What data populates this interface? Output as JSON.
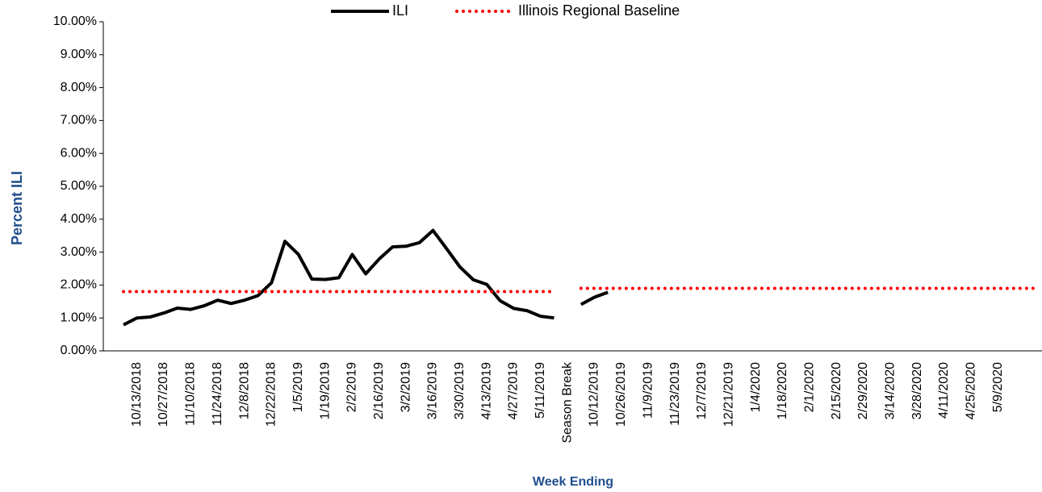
{
  "chart_data": {
    "type": "line",
    "x_label": "Week Ending",
    "y_label": "Percent ILI",
    "categories": [
      null,
      null,
      "10/13/2018",
      null,
      "10/27/2018",
      null,
      "11/10/2018",
      null,
      "11/24/2018",
      null,
      "12/8/2018",
      null,
      "12/22/2018",
      null,
      "1/5/2019",
      null,
      "1/19/2019",
      null,
      "2/2/2019",
      null,
      "2/16/2019",
      null,
      "3/2/2019",
      null,
      "3/16/2019",
      null,
      "3/30/2019",
      null,
      "4/13/2019",
      null,
      "4/27/2019",
      null,
      "5/11/2019",
      null,
      "Season Break",
      null,
      "10/12/2019",
      null,
      "10/26/2019",
      null,
      "11/9/2019",
      null,
      "11/23/2019",
      null,
      "12/7/2019",
      null,
      "12/21/2019",
      null,
      "1/4/2020",
      null,
      "1/18/2020",
      null,
      "2/1/2020",
      null,
      "2/15/2020",
      null,
      "2/29/2020",
      null,
      "3/14/2020",
      null,
      "3/28/2020",
      null,
      "4/11/2020",
      null,
      "4/25/2020",
      null,
      "5/9/2020",
      null,
      null,
      null
    ],
    "series": [
      {
        "name": "ILI",
        "color": "#000000",
        "line_style": "solid",
        "values": [
          null,
          0.79,
          1.0,
          1.03,
          1.15,
          1.3,
          1.26,
          1.37,
          1.54,
          1.44,
          1.54,
          1.68,
          2.07,
          3.33,
          2.93,
          2.18,
          2.17,
          2.22,
          2.93,
          2.34,
          2.79,
          3.16,
          3.18,
          3.29,
          3.66,
          3.11,
          2.55,
          2.16,
          2.02,
          1.52,
          1.29,
          1.22,
          1.05,
          1.0,
          null,
          1.41,
          1.63,
          1.78,
          null,
          null,
          null,
          null,
          null,
          null,
          null,
          null,
          null,
          null,
          null,
          null,
          null,
          null,
          null,
          null,
          null,
          null,
          null,
          null,
          null,
          null,
          null,
          null,
          null,
          null,
          null,
          null,
          null,
          null,
          null,
          null
        ]
      },
      {
        "name": "Illinois Regional Baseline",
        "color": "#ff0000",
        "line_style": "dotted",
        "values": [
          null,
          1.8,
          1.8,
          1.8,
          1.8,
          1.8,
          1.8,
          1.8,
          1.8,
          1.8,
          1.8,
          1.8,
          1.8,
          1.8,
          1.8,
          1.8,
          1.8,
          1.8,
          1.8,
          1.8,
          1.8,
          1.8,
          1.8,
          1.8,
          1.8,
          1.8,
          1.8,
          1.8,
          1.8,
          1.8,
          1.8,
          1.8,
          1.8,
          1.8,
          null,
          1.9,
          1.9,
          1.9,
          1.9,
          1.9,
          1.9,
          1.9,
          1.9,
          1.9,
          1.9,
          1.9,
          1.9,
          1.9,
          1.9,
          1.9,
          1.9,
          1.9,
          1.9,
          1.9,
          1.9,
          1.9,
          1.9,
          1.9,
          1.9,
          1.9,
          1.9,
          1.9,
          1.9,
          1.9,
          1.9,
          1.9,
          1.9,
          1.9,
          1.9,
          1.9
        ]
      }
    ],
    "ylim": [
      0,
      10
    ],
    "yticks": [
      {
        "value": 0,
        "label": "0.00%"
      },
      {
        "value": 1,
        "label": "1.00%"
      },
      {
        "value": 2,
        "label": "2.00%"
      },
      {
        "value": 3,
        "label": "3.00%"
      },
      {
        "value": 4,
        "label": "4.00%"
      },
      {
        "value": 5,
        "label": "5.00%"
      },
      {
        "value": 6,
        "label": "6.00%"
      },
      {
        "value": 7,
        "label": "7.00%"
      },
      {
        "value": 8,
        "label": "8.00%"
      },
      {
        "value": 9,
        "label": "9.00%"
      },
      {
        "value": 10,
        "label": "10.00%"
      }
    ],
    "grid": false,
    "legend": "top"
  }
}
